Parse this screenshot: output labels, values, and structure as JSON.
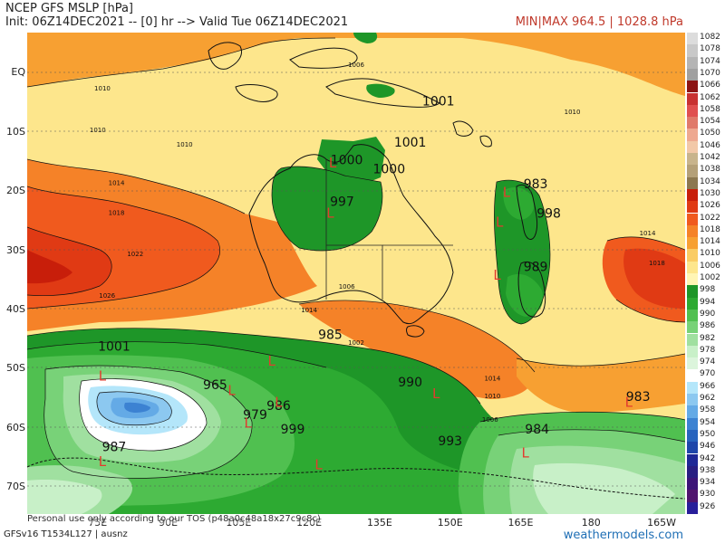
{
  "header": {
    "title": "NCEP GFS MSLP [hPa]",
    "init": "Init: 06Z14DEC2021 -- [0] hr --> Valid Tue 06Z14DEC2021",
    "minmax": "MIN|MAX 964.5 | 1028.8 hPa"
  },
  "axes": {
    "lat_labels": [
      "EQ",
      "10S",
      "20S",
      "30S",
      "40S",
      "50S",
      "60S",
      "70S"
    ],
    "lon_labels": [
      "75E",
      "90E",
      "105E",
      "120E",
      "135E",
      "150E",
      "165E",
      "180",
      "165W"
    ]
  },
  "legend": {
    "values": [
      "1082",
      "1078",
      "1074",
      "1070",
      "1066",
      "1062",
      "1058",
      "1054",
      "1050",
      "1046",
      "1042",
      "1038",
      "1034",
      "1030",
      "1026",
      "1022",
      "1018",
      "1014",
      "1010",
      "1006",
      "1002",
      "998",
      "994",
      "990",
      "986",
      "982",
      "978",
      "974",
      "970",
      "966",
      "962",
      "958",
      "954",
      "950",
      "946",
      "942",
      "938",
      "934",
      "930",
      "926"
    ],
    "colors": [
      "#dcdcdc",
      "#c8c8c8",
      "#b4b4b4",
      "#a0a0a0",
      "#8c1414",
      "#c83232",
      "#e05050",
      "#e07a6a",
      "#eea890",
      "#f2c8a8",
      "#c8b48c",
      "#b4a078",
      "#8c7850",
      "#c81e0a",
      "#e03a14",
      "#f05a1e",
      "#f58228",
      "#f7a032",
      "#facc64",
      "#fde68c",
      "#fff5b4",
      "#1e9628",
      "#2daa32",
      "#50c050",
      "#78d278",
      "#a0e0a0",
      "#c8f0c8",
      "#dcf5dc",
      "#ffffff",
      "#b4e6fa",
      "#8cc8f0",
      "#64aae6",
      "#3c82d2",
      "#2864be",
      "#1e46aa",
      "#1e2896",
      "#281e82",
      "#3c1478",
      "#50146e",
      "#281e9a"
    ]
  },
  "footer": {
    "left": "GFSv16 T1534L127 | ausnz",
    "right": "weathermodels.com",
    "notice": "Personal use only according to our TOS (p48a0c48a18x27c9c8c)"
  },
  "chart_data": {
    "type": "heatmap",
    "title": "NCEP GFS MSLP [hPa]",
    "field": "mean sea level pressure",
    "units": "hPa",
    "min": 964.5,
    "max": 1028.8,
    "contour_interval_hpa": 4,
    "lat_ticks": [
      "EQ",
      "10S",
      "20S",
      "30S",
      "40S",
      "50S",
      "60S",
      "70S"
    ],
    "lon_ticks": [
      "75E",
      "90E",
      "105E",
      "120E",
      "135E",
      "150E",
      "165E",
      "180",
      "165W"
    ],
    "contour_labels": [
      {
        "label": "1001",
        "lon": 147.5,
        "lat": -5.5
      },
      {
        "label": "1001",
        "lon": 141.5,
        "lat": -12.5
      },
      {
        "label": "1000",
        "lon": 128,
        "lat": -15.5
      },
      {
        "label": "1000",
        "lon": 137,
        "lat": -17
      },
      {
        "label": "997",
        "lon": 127,
        "lat": -22.5
      },
      {
        "label": "983",
        "lon": 168.2,
        "lat": -19.5
      },
      {
        "label": "998",
        "lon": 171,
        "lat": -24.5
      },
      {
        "label": "989",
        "lon": 168.2,
        "lat": -33.5
      },
      {
        "label": "1001",
        "lon": 78.5,
        "lat": -47
      },
      {
        "label": "985",
        "lon": 124.5,
        "lat": -45
      },
      {
        "label": "965",
        "lon": 100,
        "lat": -53.5
      },
      {
        "label": "990",
        "lon": 141.5,
        "lat": -53
      },
      {
        "label": "986",
        "lon": 113.5,
        "lat": -57
      },
      {
        "label": "979",
        "lon": 108.5,
        "lat": -58.5
      },
      {
        "label": "983",
        "lon": 190,
        "lat": -55.5
      },
      {
        "label": "999",
        "lon": 116.5,
        "lat": -61
      },
      {
        "label": "984",
        "lon": 168.5,
        "lat": -61
      },
      {
        "label": "993",
        "lon": 150,
        "lat": -63
      },
      {
        "label": "987",
        "lon": 78.5,
        "lat": -64
      }
    ],
    "low_centers": [
      {
        "lon": 125,
        "lat": -16
      },
      {
        "lon": 124.5,
        "lat": -24.5
      },
      {
        "lon": 162,
        "lat": -21
      },
      {
        "lon": 160.5,
        "lat": -26
      },
      {
        "lon": 160,
        "lat": -35
      },
      {
        "lon": 112,
        "lat": -49.5
      },
      {
        "lon": 103.5,
        "lat": -54.5
      },
      {
        "lon": 113.5,
        "lat": -56.5
      },
      {
        "lon": 147,
        "lat": -55
      },
      {
        "lon": 107,
        "lat": -60
      },
      {
        "lon": 122,
        "lat": -67
      },
      {
        "lon": 188,
        "lat": -56.5
      },
      {
        "lon": 166,
        "lat": -65
      },
      {
        "lon": 76,
        "lat": -66.5
      },
      {
        "lon": 76,
        "lat": -52
      }
    ],
    "isobar_labels": [
      {
        "label": "1006",
        "lon": 130,
        "lat": 1
      },
      {
        "label": "1010",
        "lon": 76,
        "lat": -3
      },
      {
        "label": "1010",
        "lon": 176,
        "lat": -7
      },
      {
        "label": "1010",
        "lon": 75,
        "lat": -10
      },
      {
        "label": "1010",
        "lon": 93.5,
        "lat": -12.5
      },
      {
        "label": "1014",
        "lon": 79,
        "lat": -19
      },
      {
        "label": "1018",
        "lon": 79,
        "lat": -24
      },
      {
        "label": "1022",
        "lon": 83,
        "lat": -31
      },
      {
        "label": "1026",
        "lon": 77,
        "lat": -38
      },
      {
        "label": "1014",
        "lon": 120,
        "lat": -40.5
      },
      {
        "label": "1006",
        "lon": 128,
        "lat": -36.5
      },
      {
        "label": "1002",
        "lon": 130,
        "lat": -46
      },
      {
        "label": "1014",
        "lon": 159,
        "lat": -52
      },
      {
        "label": "1010",
        "lon": 159,
        "lat": -55
      },
      {
        "label": "1006",
        "lon": 158.5,
        "lat": -59
      },
      {
        "label": "1018",
        "lon": 194,
        "lat": -32.5
      },
      {
        "label": "1014",
        "lon": 192,
        "lat": -27.5
      }
    ]
  }
}
